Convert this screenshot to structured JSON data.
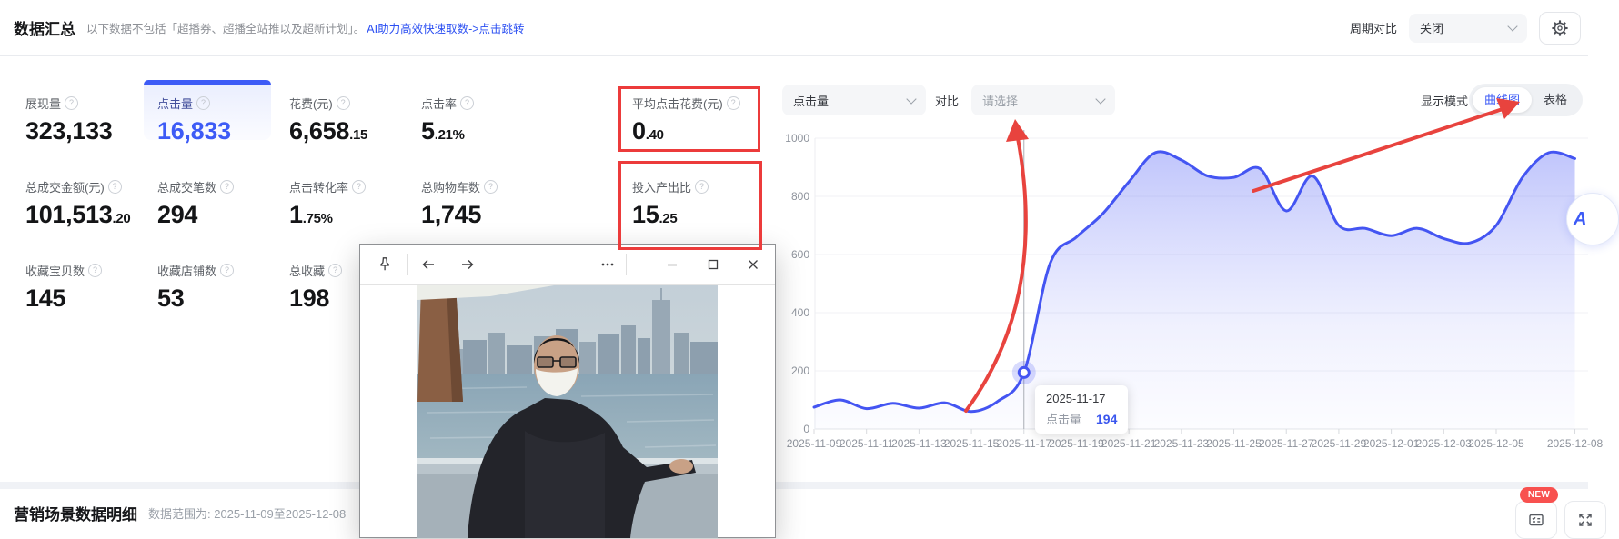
{
  "accent_color": "#3d5bf6",
  "annotation_color": "#ec3b3b",
  "header": {
    "title": "数据汇总",
    "note": "以下数据不包括「超播券、超播全站推以及超新计划」。",
    "link": "AI助力高效快速取数->点击跳转",
    "period_label": "周期对比",
    "period_value": "关闭"
  },
  "metrics": [
    {
      "label": "展现量",
      "main": "323,133",
      "sub": "",
      "x": 28,
      "row": 0
    },
    {
      "label": "点击量",
      "main": "16,833",
      "sub": "",
      "x": 173,
      "row": 0,
      "selected": true
    },
    {
      "label": "花费(元)",
      "main": "6,658",
      "sub": ".15",
      "x": 318,
      "row": 0
    },
    {
      "label": "点击率",
      "main": "5",
      "sub": ".21%",
      "x": 463,
      "row": 0
    },
    {
      "label": "平均点击花费(元)",
      "main": "0",
      "sub": ".40",
      "x": 695,
      "row": 0,
      "boxed": true
    },
    {
      "label": "总成交金额(元)",
      "main": "101,513",
      "sub": ".20",
      "x": 28,
      "row": 1
    },
    {
      "label": "总成交笔数",
      "main": "294",
      "sub": "",
      "x": 173,
      "row": 1
    },
    {
      "label": "点击转化率",
      "main": "1",
      "sub": ".75%",
      "x": 318,
      "row": 1
    },
    {
      "label": "总购物车数",
      "main": "1,745",
      "sub": "",
      "x": 463,
      "row": 1
    },
    {
      "label": "投入产出比",
      "main": "15",
      "sub": ".25",
      "x": 695,
      "row": 1,
      "boxed": true
    },
    {
      "label": "收藏宝贝数",
      "main": "145",
      "sub": "",
      "x": 28,
      "row": 2
    },
    {
      "label": "收藏店铺数",
      "main": "53",
      "sub": "",
      "x": 173,
      "row": 2
    },
    {
      "label": "总收藏",
      "main": "198",
      "sub": "",
      "x": 318,
      "row": 2
    }
  ],
  "chart_controls": {
    "metric_select": "点击量",
    "compare_label": "对比",
    "compare_select": "请选择",
    "mode_label": "显示模式",
    "mode_options": [
      "曲线图",
      "表格"
    ],
    "mode_active": "曲线图"
  },
  "chart_data": {
    "type": "line",
    "series_name": "点击量",
    "x": [
      "2025-11-09",
      "2025-11-10",
      "2025-11-11",
      "2025-11-12",
      "2025-11-13",
      "2025-11-14",
      "2025-11-15",
      "2025-11-16",
      "2025-11-17",
      "2025-11-18",
      "2025-11-19",
      "2025-11-20",
      "2025-11-21",
      "2025-11-22",
      "2025-11-23",
      "2025-11-24",
      "2025-11-25",
      "2025-11-26",
      "2025-11-27",
      "2025-11-28",
      "2025-11-29",
      "2025-11-30",
      "2025-12-01",
      "2025-12-02",
      "2025-12-03",
      "2025-12-04",
      "2025-12-05",
      "2025-12-06",
      "2025-12-07",
      "2025-12-08"
    ],
    "values": [
      75,
      100,
      70,
      88,
      72,
      90,
      60,
      95,
      194,
      570,
      660,
      740,
      850,
      950,
      925,
      870,
      865,
      895,
      750,
      870,
      700,
      690,
      665,
      690,
      655,
      640,
      700,
      865,
      950,
      930
    ],
    "ylim": [
      0,
      1000
    ],
    "yticks": [
      0,
      200,
      400,
      600,
      800,
      1000
    ],
    "xtick_labels": [
      "2025-11-09",
      "2025-11-11",
      "2025-11-13",
      "2025-11-15",
      "2025-11-17",
      "2025-11-19",
      "2025-11-21",
      "2025-11-23",
      "2025-11-25",
      "2025-11-27",
      "2025-11-29",
      "2025-12-01",
      "2025-12-03",
      "2025-12-05",
      "2025-12-08"
    ],
    "grid": true,
    "legend_position": "none",
    "line_color": "#4455f2",
    "highlight": {
      "date": "2025-11-17",
      "value": 194
    }
  },
  "tooltip": {
    "date": "2025-11-17",
    "series": "点击量",
    "value": "194"
  },
  "photo_window": {
    "controls": [
      "pin",
      "back",
      "forward",
      "more",
      "minimize",
      "maximize",
      "close"
    ]
  },
  "assistant": {
    "label": "A"
  },
  "footer": {
    "title": "营销场景数据明细",
    "range": "数据范围为: 2025-11-09至2025-12-08",
    "new_badge": "NEW"
  }
}
